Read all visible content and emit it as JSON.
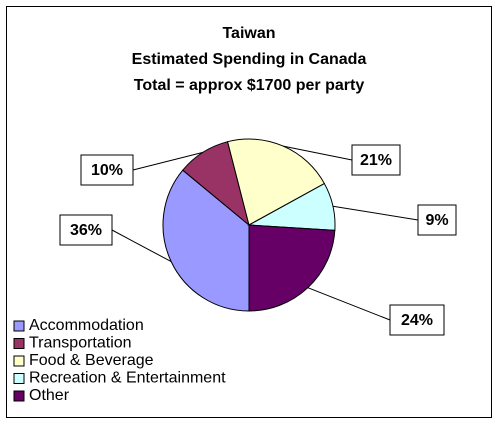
{
  "chart_data": {
    "type": "pie",
    "title": [
      "Taiwan",
      "Estimated Spending in Canada",
      "Total = approx $1700 per party"
    ],
    "categories": [
      "Accommodation",
      "Transportation",
      "Food & Beverage",
      "Recreation & Entertainment",
      "Other"
    ],
    "values": [
      36,
      10,
      21,
      9,
      24
    ],
    "value_labels": [
      "36%",
      "10%",
      "21%",
      "9%",
      "24%"
    ],
    "colors": [
      "#9999ff",
      "#993366",
      "#ffffcc",
      "#ccffff",
      "#660066"
    ],
    "legend": "bottom-left"
  }
}
